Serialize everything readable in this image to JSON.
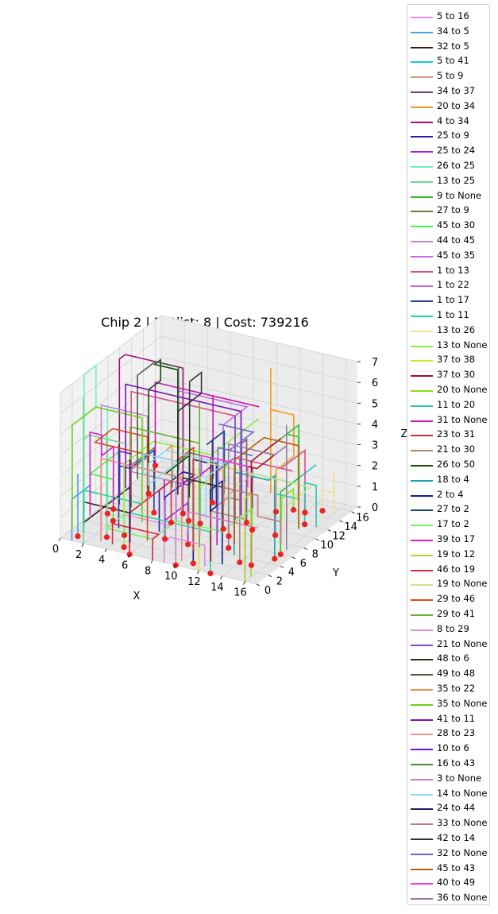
{
  "chart_data": {
    "type": "line",
    "title": "Chip 2  | Netlist: 8  | Cost: 739216",
    "xlabel": "X",
    "ylabel": "Y",
    "zlabel": "Z",
    "xlim": [
      0,
      17
    ],
    "ylim": [
      0,
      17
    ],
    "zlim": [
      0,
      7
    ],
    "x_ticks": [
      "0",
      "2",
      "4",
      "6",
      "8",
      "10",
      "12",
      "14",
      "16"
    ],
    "y_ticks": [
      "0",
      "2",
      "4",
      "6",
      "8",
      "10",
      "12",
      "14",
      "16"
    ],
    "z_ticks": [
      "0",
      "1",
      "2",
      "3",
      "4",
      "5",
      "6",
      "7"
    ],
    "grid": true,
    "legend_position": "right",
    "gate_color": "#ee2222",
    "series": [
      {
        "name": "5 to 16",
        "color": "#f08ce0"
      },
      {
        "name": "34 to 5",
        "color": "#4a9ee6"
      },
      {
        "name": "32 to 5",
        "color": "#3b1a12"
      },
      {
        "name": "5 to 41",
        "color": "#1ccad8"
      },
      {
        "name": "5 to 9",
        "color": "#d8a08a"
      },
      {
        "name": "34 to 37",
        "color": "#7a4c6e"
      },
      {
        "name": "20 to 34",
        "color": "#f59a1e"
      },
      {
        "name": "4 to 34",
        "color": "#a0127a"
      },
      {
        "name": "25 to 9",
        "color": "#2a1aa8"
      },
      {
        "name": "25 to 24",
        "color": "#a61ed8"
      },
      {
        "name": "26 to 25",
        "color": "#6ef0c8"
      },
      {
        "name": "13 to 25",
        "color": "#6ad88a"
      },
      {
        "name": "9 to None",
        "color": "#2ec42e"
      },
      {
        "name": "27 to 9",
        "color": "#6e7a40"
      },
      {
        "name": "45 to 30",
        "color": "#4af04a"
      },
      {
        "name": "44 to 45",
        "color": "#b48ac8"
      },
      {
        "name": "45 to 35",
        "color": "#c46ae6"
      },
      {
        "name": "1 to 13",
        "color": "#d8508a"
      },
      {
        "name": "1 to 22",
        "color": "#c070e0"
      },
      {
        "name": "1 to 17",
        "color": "#2a3aa0"
      },
      {
        "name": "1 to 11",
        "color": "#1ed8a0"
      },
      {
        "name": "13 to 26",
        "color": "#f0e08a"
      },
      {
        "name": "13 to None",
        "color": "#8af03a"
      },
      {
        "name": "37 to 38",
        "color": "#e0e030"
      },
      {
        "name": "37 to 30",
        "color": "#a0102a"
      },
      {
        "name": "20 to None",
        "color": "#8ae01a"
      },
      {
        "name": "11 to 20",
        "color": "#30c4b4"
      },
      {
        "name": "31 to None",
        "color": "#c018b0"
      },
      {
        "name": "23 to 31",
        "color": "#d8283a"
      },
      {
        "name": "21 to 30",
        "color": "#a88a6a"
      },
      {
        "name": "26 to 50",
        "color": "#1a4a10"
      },
      {
        "name": "18 to 4",
        "color": "#18a8a8"
      },
      {
        "name": "2 to 4",
        "color": "#101a8a"
      },
      {
        "name": "27 to 2",
        "color": "#104a7a"
      },
      {
        "name": "17 to 2",
        "color": "#7af06a"
      },
      {
        "name": "39 to 17",
        "color": "#e018c8"
      },
      {
        "name": "19 to 12",
        "color": "#a8d83a"
      },
      {
        "name": "46 to 19",
        "color": "#d8284a"
      },
      {
        "name": "19 to None",
        "color": "#c8e88a"
      },
      {
        "name": "29 to 46",
        "color": "#d84a1a"
      },
      {
        "name": "29 to 41",
        "color": "#6ab030"
      },
      {
        "name": "8 to 29",
        "color": "#e08ae8"
      },
      {
        "name": "21 to None",
        "color": "#8a4ac8"
      },
      {
        "name": "48 to 6",
        "color": "#183a10"
      },
      {
        "name": "49 to 48",
        "color": "#4a5a4a"
      },
      {
        "name": "35 to 22",
        "color": "#f0904a"
      },
      {
        "name": "35 to None",
        "color": "#6ad018"
      },
      {
        "name": "41 to 11",
        "color": "#7a10b0"
      },
      {
        "name": "28 to 23",
        "color": "#f08a8a"
      },
      {
        "name": "10 to 6",
        "color": "#6a18d8"
      },
      {
        "name": "16 to 43",
        "color": "#4a8a3a"
      },
      {
        "name": "3 to None",
        "color": "#d878b8"
      },
      {
        "name": "14 to None",
        "color": "#8adcf0"
      },
      {
        "name": "24 to 44",
        "color": "#3a106a"
      },
      {
        "name": "33 to None",
        "color": "#c07a7a"
      },
      {
        "name": "42 to 14",
        "color": "#3a3030"
      },
      {
        "name": "32 to None",
        "color": "#6a68c8"
      },
      {
        "name": "45 to 43",
        "color": "#b8600a"
      },
      {
        "name": "40 to 49",
        "color": "#f040e0"
      },
      {
        "name": "36 to None",
        "color": "#9a78a8"
      }
    ]
  }
}
